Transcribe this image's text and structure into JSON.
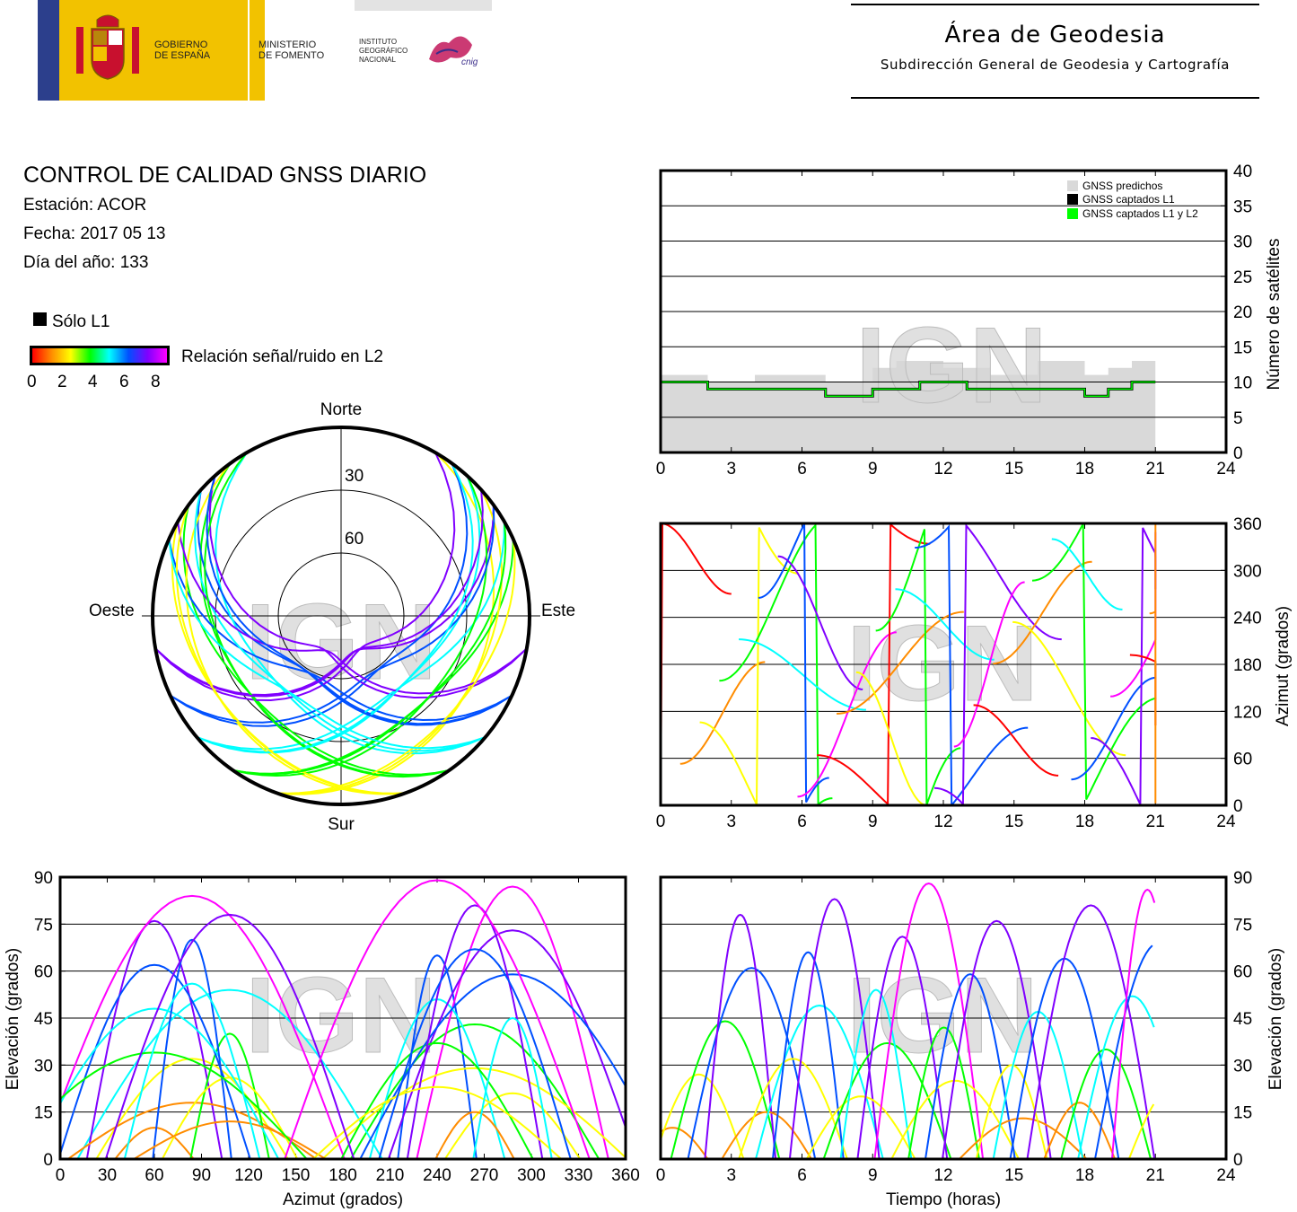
{
  "header": {
    "gov": "GOBIERNO\nDE ESPAÑA",
    "ministry": "MINISTERIO\nDE FOMENTO",
    "institute": "INSTITUTO\nGEOGRÁFICO\nNACIONAL",
    "cnig": "cnig",
    "area_title": "Área de Geodesia",
    "area_subtitle": "Subdirección General de Geodesia y Cartografía"
  },
  "report": {
    "title": "CONTROL DE CALIDAD GNSS DIARIO",
    "station": "Estación: ACOR",
    "date": "Fecha: 2017 05 13",
    "doy": "Día del año: 133",
    "legend_l1": "Sólo L1",
    "legend_snr": "Relación señal/ruido en L2",
    "snr_ticks": [
      "0",
      "2",
      "4",
      "6",
      "8"
    ]
  },
  "colors": {
    "predicted": "#d9d9d9",
    "l1": "#000000",
    "l1l2": "#00ff00",
    "snr_gradient": [
      "#ff0000",
      "#ff8c00",
      "#ffff00",
      "#00ff00",
      "#00ffff",
      "#0050ff",
      "#8000ff",
      "#ff00ff"
    ]
  },
  "watermark": "IGN",
  "chart_data": [
    {
      "id": "satellite-count",
      "type": "area",
      "xlim": [
        0,
        24
      ],
      "ylim": [
        0,
        40
      ],
      "xticks": [
        "0",
        "3",
        "6",
        "9",
        "12",
        "15",
        "18",
        "21",
        "24"
      ],
      "yticks": [
        "0",
        "5",
        "10",
        "15",
        "20",
        "25",
        "30",
        "35",
        "40"
      ],
      "ylabel": "Número de satélites",
      "legend": [
        "GNSS predichos",
        "GNSS captados L1",
        "GNSS captados L1 y L2"
      ],
      "legend_position": "top-right",
      "x": [
        0,
        1,
        2,
        3,
        4,
        5,
        6,
        7,
        8,
        9,
        10,
        11,
        12,
        13,
        14,
        15,
        16,
        17,
        18,
        19,
        20,
        21
      ],
      "series": [
        {
          "name": "GNSS predichos",
          "values": [
            11,
            11,
            10,
            10,
            11,
            11,
            11,
            10,
            10,
            12,
            13,
            13,
            12,
            12,
            11,
            11,
            13,
            13,
            11,
            12,
            13,
            13
          ]
        },
        {
          "name": "GNSS captados L1",
          "values": [
            10,
            10,
            9,
            9,
            9,
            9,
            9,
            8,
            8,
            9,
            9,
            10,
            10,
            9,
            9,
            9,
            9,
            9,
            8,
            9,
            10,
            10
          ]
        },
        {
          "name": "GNSS captados L1 y L2",
          "values": [
            10,
            10,
            9,
            9,
            9,
            9,
            9,
            8,
            8,
            9,
            9,
            10,
            10,
            9,
            9,
            9,
            9,
            9,
            8,
            9,
            10,
            10
          ]
        }
      ]
    },
    {
      "id": "sky-plot",
      "type": "scatter",
      "projection": "polar",
      "directions": [
        "Norte",
        "Este",
        "Sur",
        "Oeste"
      ],
      "elevation_rings": [
        "30",
        "60"
      ],
      "note_color_scale": "SNR L2"
    },
    {
      "id": "azimuth-time",
      "type": "scatter",
      "xlim": [
        0,
        24
      ],
      "ylim": [
        0,
        360
      ],
      "xticks": [
        "0",
        "3",
        "6",
        "9",
        "12",
        "15",
        "18",
        "21",
        "24"
      ],
      "yticks": [
        "0",
        "60",
        "120",
        "180",
        "240",
        "300",
        "360"
      ],
      "ylabel": "Azimut (grados)"
    },
    {
      "id": "elevation-azimuth",
      "type": "scatter",
      "xlim": [
        0,
        360
      ],
      "ylim": [
        0,
        90
      ],
      "xticks": [
        "0",
        "30",
        "60",
        "90",
        "120",
        "150",
        "180",
        "210",
        "240",
        "270",
        "300",
        "330",
        "360"
      ],
      "yticks": [
        "0",
        "15",
        "30",
        "45",
        "60",
        "75",
        "90"
      ],
      "xlabel": "Azimut (grados)",
      "ylabel": "Elevación (grados)"
    },
    {
      "id": "elevation-time",
      "type": "scatter",
      "xlim": [
        0,
        24
      ],
      "ylim": [
        0,
        90
      ],
      "xticks": [
        "0",
        "3",
        "6",
        "9",
        "12",
        "15",
        "18",
        "21",
        "24"
      ],
      "yticks": [
        "0",
        "15",
        "30",
        "45",
        "60",
        "75",
        "90"
      ],
      "xlabel": "Tiempo (horas)",
      "ylabel": "Elevación (grados)"
    }
  ]
}
